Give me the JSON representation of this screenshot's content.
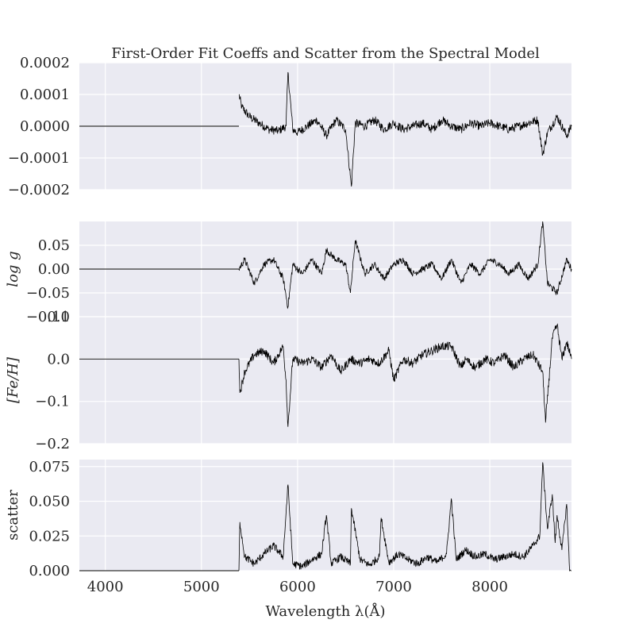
{
  "chart_data": {
    "type": "line",
    "title": "First-Order Fit Coeffs and Scatter from the Spectral Model",
    "xlabel": "Wavelength λ(Å)",
    "xlim": [
      3730,
      8850
    ],
    "x_ticks": [
      "4000",
      "5000",
      "6000",
      "7000",
      "8000"
    ],
    "x_tick_values": [
      4000,
      5000,
      6000,
      7000,
      8000
    ],
    "grid": true,
    "background": "#eaeaf2",
    "line_color": "#000000",
    "panels": [
      {
        "ylabel": "",
        "ylim": [
          -0.0002,
          0.0002
        ],
        "y_ticks": [
          "0.0002",
          "0.0001",
          "0.0000",
          "−0.0001",
          "−0.0002"
        ],
        "y_tick_values": [
          0.0002,
          0.0001,
          0.0,
          -0.0001,
          -0.0002
        ],
        "flat_until": 5390,
        "series": [
          {
            "x": [
              5390,
              5420,
              5500,
              5600,
              5700,
              5800,
              5880,
              5900,
              5950,
              6000,
              6100,
              6200,
              6300,
              6400,
              6500,
              6560,
              6600,
              6700,
              6800,
              6900,
              7000,
              7100,
              7200,
              7300,
              7400,
              7500,
              7600,
              7700,
              7800,
              7900,
              8000,
              8100,
              8200,
              8300,
              8400,
              8500,
              8550,
              8600,
              8700,
              8800,
              8850
            ],
            "y": [
              0.0001,
              6e-05,
              3e-05,
              1e-05,
              -1e-05,
              -1.5e-05,
              0.0,
              0.00017,
              -1e-05,
              -2e-05,
              0.0,
              2e-05,
              -3e-05,
              2e-05,
              -1e-05,
              -0.00019,
              1e-05,
              0.0,
              2e-05,
              -1e-05,
              1e-05,
              -1e-05,
              0.0,
              1e-05,
              -1e-05,
              2e-05,
              0.0,
              -1e-05,
              1e-05,
              0.0,
              1e-05,
              0.0,
              -1e-05,
              0.0,
              1e-05,
              2e-05,
              -9e-05,
              -2e-05,
              3e-05,
              -3e-05,
              0.0
            ]
          }
        ]
      },
      {
        "ylabel": "log g",
        "ylim": [
          -0.1,
          0.1
        ],
        "y_ticks": [
          "0.05",
          "0.00",
          "−0.05",
          "−0.10"
        ],
        "y_tick_values": [
          0.05,
          0.0,
          -0.05,
          -0.1
        ],
        "flat_until": 5390,
        "series": [
          {
            "x": [
              5390,
              5450,
              5550,
              5650,
              5750,
              5850,
              5900,
              5950,
              6050,
              6150,
              6250,
              6300,
              6400,
              6500,
              6550,
              6600,
              6700,
              6800,
              6900,
              7000,
              7100,
              7200,
              7300,
              7400,
              7500,
              7600,
              7700,
              7800,
              7900,
              8000,
              8100,
              8200,
              8300,
              8400,
              8500,
              8550,
              8600,
              8700,
              8800,
              8850
            ],
            "y": [
              0.0,
              0.02,
              -0.03,
              0.01,
              0.02,
              -0.02,
              -0.08,
              0.01,
              -0.01,
              0.02,
              -0.01,
              0.04,
              0.02,
              0.01,
              -0.05,
              0.06,
              -0.01,
              0.01,
              -0.02,
              0.01,
              0.02,
              -0.01,
              0.0,
              0.01,
              -0.02,
              0.02,
              -0.03,
              0.01,
              -0.01,
              0.02,
              0.01,
              -0.01,
              0.01,
              -0.02,
              0.01,
              0.1,
              -0.03,
              -0.05,
              0.02,
              0.0
            ]
          }
        ]
      },
      {
        "ylabel": "[Fe/H]",
        "ylim": [
          -0.2,
          0.1
        ],
        "y_ticks": [
          "0.1",
          "0.0",
          "−0.1",
          "−0.2"
        ],
        "y_tick_values": [
          0.1,
          0.0,
          -0.1,
          -0.2
        ],
        "flat_until": 5390,
        "series": [
          {
            "x": [
              5390,
              5400,
              5450,
              5550,
              5650,
              5750,
              5850,
              5880,
              5900,
              5950,
              6050,
              6150,
              6250,
              6350,
              6450,
              6550,
              6650,
              6750,
              6850,
              6950,
              7000,
              7100,
              7200,
              7300,
              7400,
              7500,
              7600,
              7700,
              7750,
              7850,
              7950,
              8050,
              8150,
              8250,
              8350,
              8450,
              8550,
              8580,
              8650,
              8700,
              8750,
              8800,
              8850
            ],
            "y": [
              0.0,
              -0.08,
              -0.03,
              0.01,
              0.02,
              -0.01,
              0.03,
              -0.05,
              -0.16,
              0.0,
              -0.01,
              0.0,
              -0.02,
              0.01,
              -0.03,
              0.0,
              -0.01,
              0.0,
              -0.01,
              0.02,
              -0.05,
              0.0,
              -0.01,
              0.01,
              0.02,
              0.03,
              0.03,
              -0.02,
              0.0,
              -0.02,
              0.0,
              -0.01,
              0.01,
              -0.02,
              0.0,
              0.01,
              -0.03,
              -0.15,
              0.05,
              0.08,
              0.0,
              0.04,
              0.0
            ]
          }
        ]
      },
      {
        "ylabel": "scatter",
        "ylim": [
          0.0,
          0.08
        ],
        "y_ticks": [
          "0.075",
          "0.050",
          "0.025",
          "0.000"
        ],
        "y_tick_values": [
          0.075,
          0.05,
          0.025,
          0.0
        ],
        "flat_until": 5390,
        "series": [
          {
            "x": [
              5390,
              5400,
              5450,
              5550,
              5650,
              5750,
              5850,
              5900,
              5950,
              6050,
              6150,
              6250,
              6300,
              6350,
              6450,
              6550,
              6560,
              6650,
              6750,
              6850,
              6870,
              6950,
              7050,
              7150,
              7250,
              7350,
              7450,
              7550,
              7600,
              7650,
              7750,
              7850,
              7950,
              8050,
              8150,
              8250,
              8350,
              8450,
              8520,
              8550,
              8600,
              8650,
              8680,
              8700,
              8750,
              8800,
              8830,
              8850
            ],
            "y": [
              0.0,
              0.035,
              0.01,
              0.005,
              0.012,
              0.018,
              0.01,
              0.062,
              0.005,
              0.003,
              0.008,
              0.012,
              0.04,
              0.005,
              0.01,
              0.005,
              0.045,
              0.008,
              0.004,
              0.01,
              0.038,
              0.006,
              0.012,
              0.008,
              0.005,
              0.01,
              0.006,
              0.012,
              0.052,
              0.008,
              0.015,
              0.01,
              0.012,
              0.008,
              0.01,
              0.012,
              0.01,
              0.018,
              0.025,
              0.078,
              0.03,
              0.055,
              0.02,
              0.04,
              0.015,
              0.048,
              0.0,
              0.0
            ]
          }
        ]
      }
    ]
  }
}
